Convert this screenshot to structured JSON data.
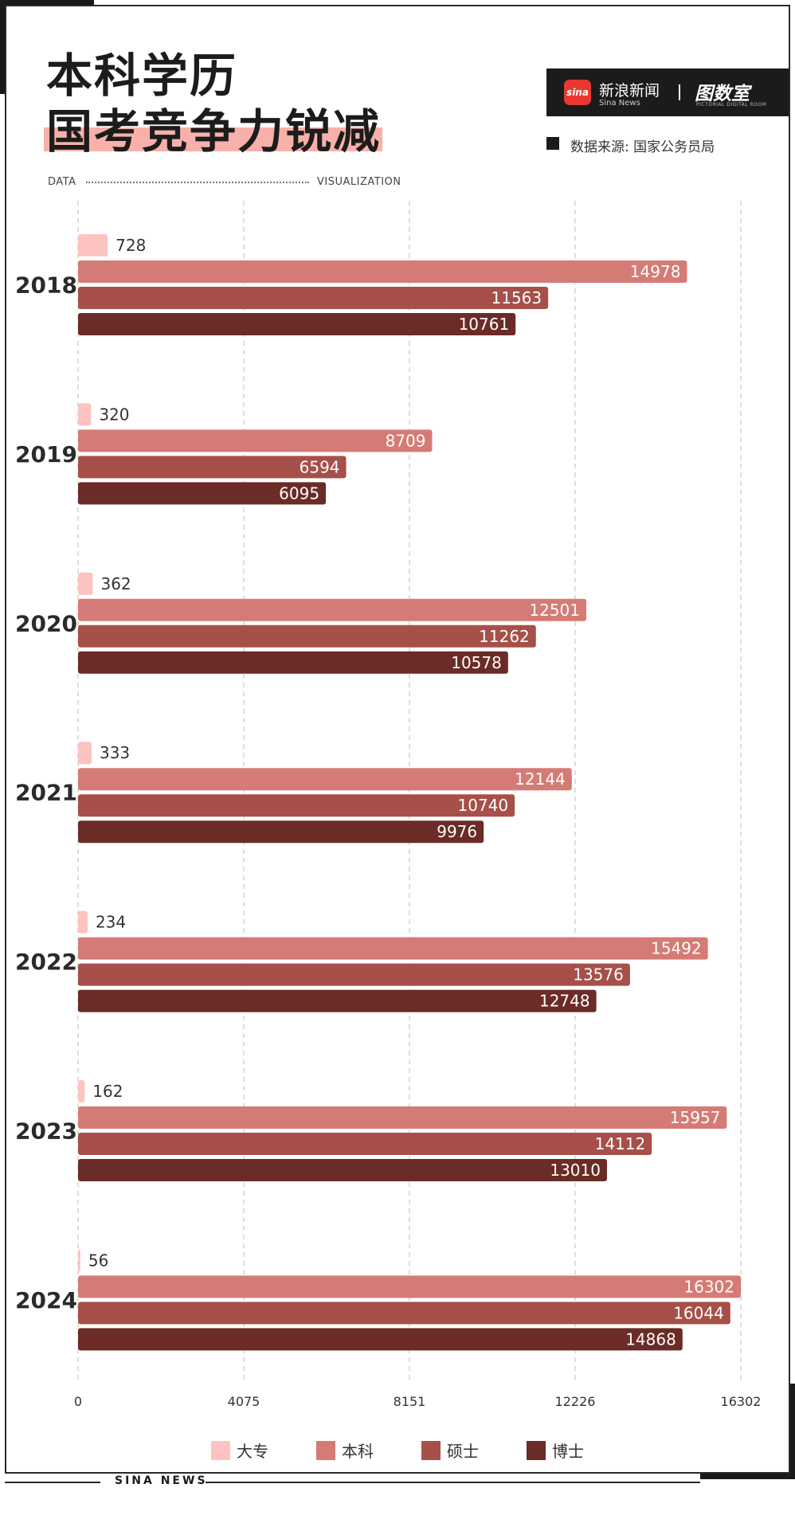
{
  "header": {
    "title_line1": "本科学历",
    "title_line2": "国考竞争力锐减",
    "tag_left": "DATA",
    "tag_right": "VISUALIZATION"
  },
  "brand": {
    "logo_text": "sina",
    "name_cn": "新浪新闻",
    "name_en": "Sina News",
    "partner": "图数室",
    "partner_sub": "PICTORIAL DIGITAL ROOM"
  },
  "source": "数据来源: 国家公务员局",
  "footer": "SINA NEWS",
  "colors": {
    "dazhuan": "#fcc3c0",
    "benke": "#d57b75",
    "shuoshi": "#a65049",
    "boshi": "#6b2b26"
  },
  "chart_data": {
    "type": "bar",
    "orientation": "horizontal",
    "categories": [
      "2018",
      "2019",
      "2020",
      "2021",
      "2022",
      "2023",
      "2024"
    ],
    "series": [
      {
        "name": "大专",
        "values": [
          728,
          320,
          362,
          333,
          234,
          162,
          56
        ]
      },
      {
        "name": "本科",
        "values": [
          14978,
          8709,
          12501,
          12144,
          15492,
          15957,
          16302
        ]
      },
      {
        "name": "硕士",
        "values": [
          11563,
          6594,
          11262,
          10740,
          13576,
          14112,
          16044
        ]
      },
      {
        "name": "博士",
        "values": [
          10761,
          6095,
          10578,
          9976,
          12748,
          13010,
          14868
        ]
      }
    ],
    "x_ticks": [
      "0",
      "4075",
      "8151",
      "12226",
      "16302"
    ],
    "xlim": [
      0,
      16302
    ],
    "grid": true,
    "legend_position": "bottom"
  }
}
